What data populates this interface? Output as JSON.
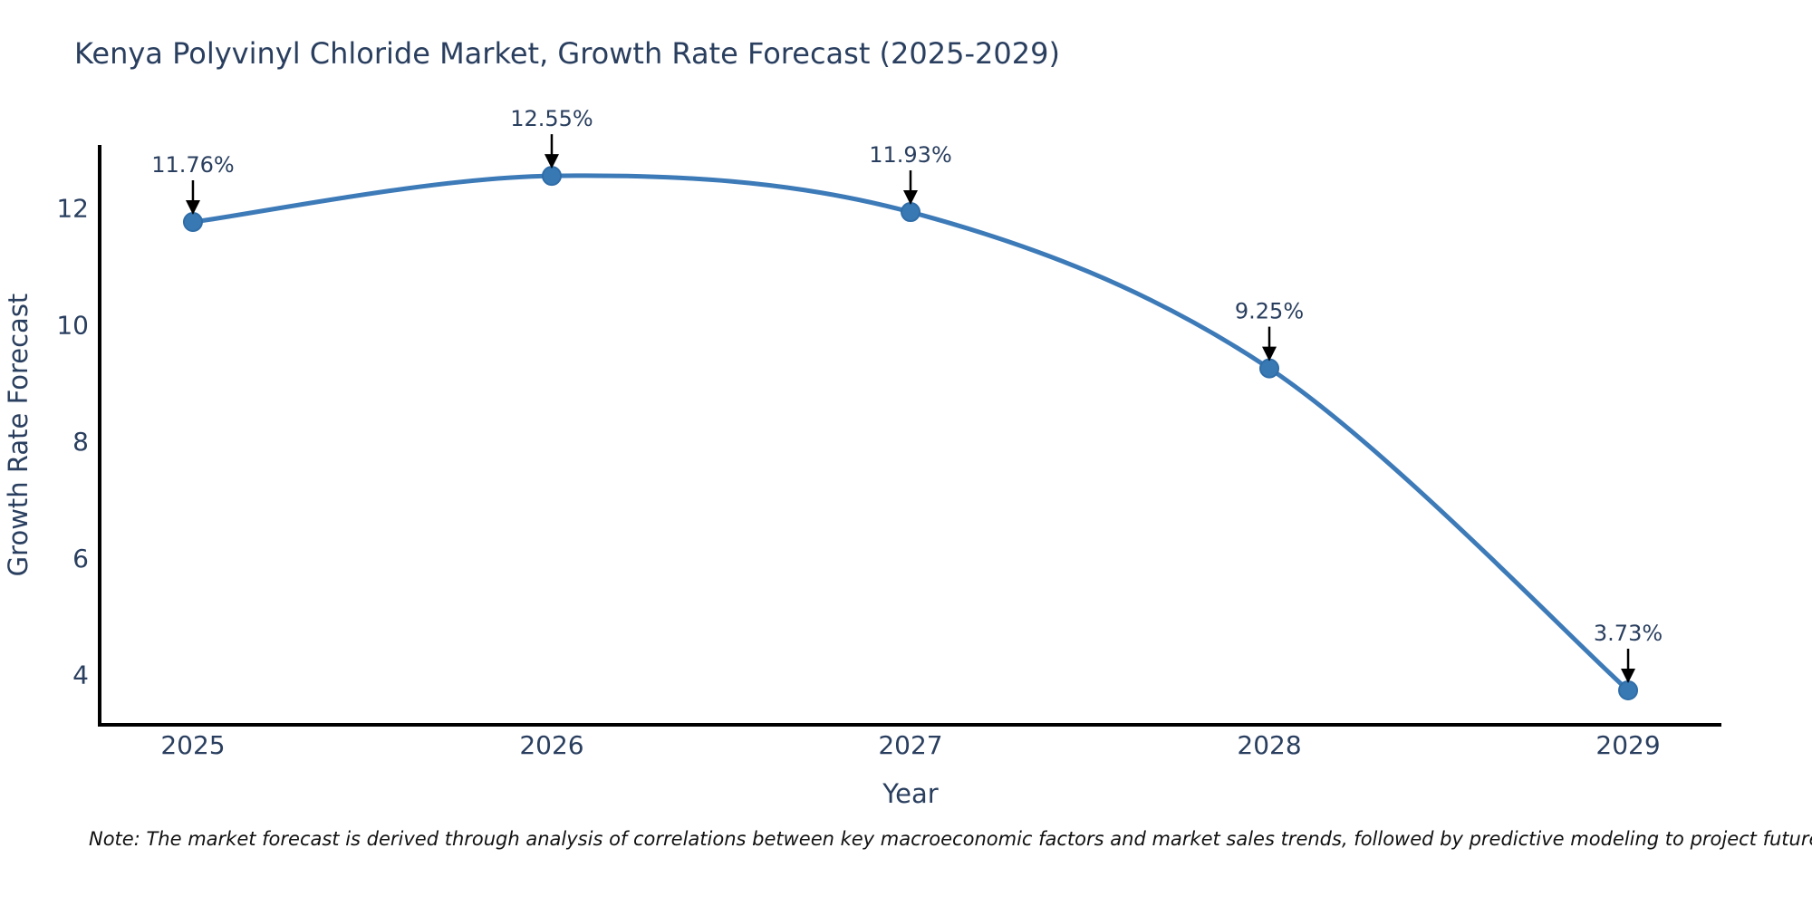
{
  "header": {
    "title": "Kenya Polyvinyl Chloride Market, Growth Rate Forecast (2025-2029)"
  },
  "footer": {
    "note": "Note: The market forecast is derived through analysis of correlations between key macroeconomic factors and market sales trends, followed by predictive modeling to project future sales"
  },
  "chart_data": {
    "type": "line",
    "title": "Kenya Polyvinyl Chloride Market, Growth Rate Forecast (2025-2029)",
    "xlabel": "Year",
    "ylabel": "Growth Rate Forecast",
    "x": [
      2025,
      2026,
      2027,
      2028,
      2029
    ],
    "series": [
      {
        "name": "Growth Rate Forecast",
        "values": [
          11.76,
          12.55,
          11.93,
          9.25,
          3.73
        ]
      }
    ],
    "point_labels": [
      "11.76%",
      "12.55%",
      "11.93%",
      "9.25%",
      "3.73%"
    ],
    "xtick_labels": [
      "2025",
      "2026",
      "2027",
      "2028",
      "2029"
    ],
    "ytick_values": [
      4,
      6,
      8,
      10,
      12
    ],
    "xlim": [
      2024.74,
      2029.26
    ],
    "ylim": [
      3.14,
      13.08
    ],
    "grid": false,
    "legend_position": "none",
    "line_shape": "spline",
    "colors": {
      "line": "#3d7ab8",
      "marker_fill": "#3879b4",
      "marker_edge": "#2f6da8",
      "axis": "#000000",
      "text": "#2a3f5f",
      "annotation_text": "#2a3f5f",
      "annotation_arrow": "#000000",
      "note_text": "#111111",
      "background": "#ffffff"
    }
  }
}
